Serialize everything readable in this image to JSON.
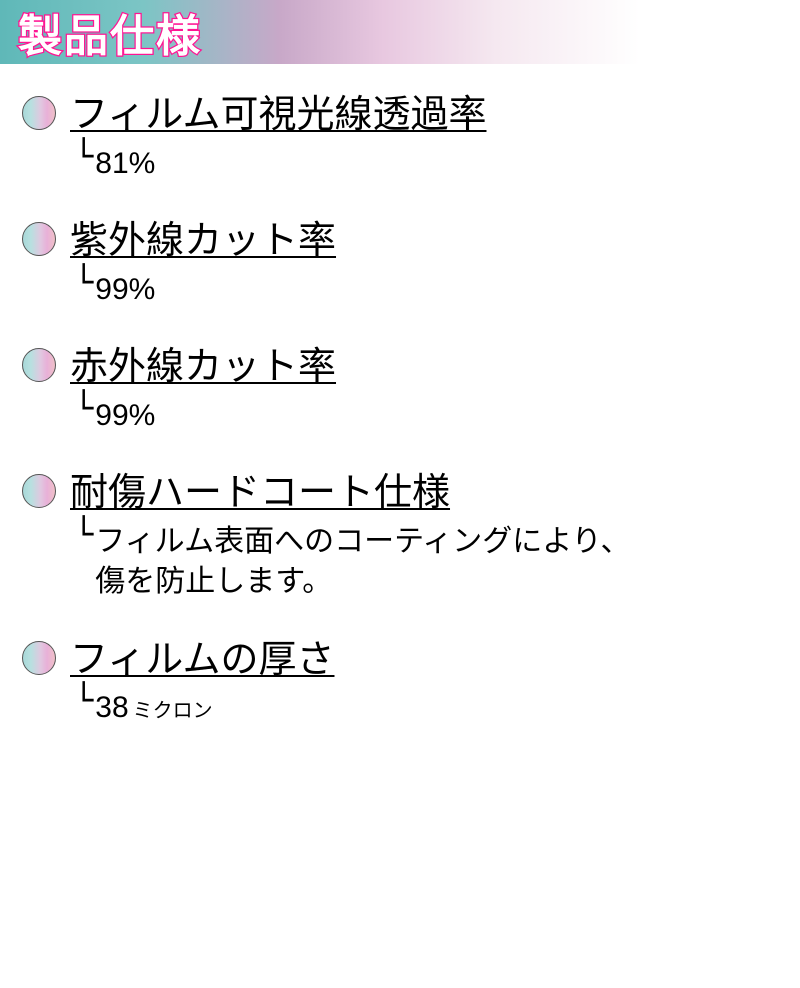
{
  "header": {
    "title": "製品仕様",
    "band_gradient": [
      "#5fb8b8",
      "#7cc5c5",
      "#c8a8c8",
      "#e8c8e0",
      "#f5e8f0",
      "#ffffff"
    ],
    "title_color": "#ffffff",
    "title_outline_color": "#ff1493",
    "title_fontsize": 44
  },
  "bullet": {
    "gradient": [
      "#a8d8d8",
      "#b8e0e0",
      "#e0c8e0",
      "#e8b0d8",
      "#f0c0c8"
    ],
    "border_color": "#555555",
    "diameter": 34
  },
  "specs": [
    {
      "label": "フィルム可視光線透過率",
      "value": "81%"
    },
    {
      "label": "紫外線カット率",
      "value": "99%"
    },
    {
      "label": "赤外線カット率",
      "value": "99%"
    },
    {
      "label": "耐傷ハードコート仕様",
      "value": "フィルム表面へのコーティングにより、\n傷を防止します。"
    },
    {
      "label": "フィルムの厚さ",
      "value": "38",
      "value_unit": "ミクロン"
    }
  ],
  "typography": {
    "label_fontsize": 38,
    "value_fontsize": 30,
    "text_color": "#000000"
  }
}
